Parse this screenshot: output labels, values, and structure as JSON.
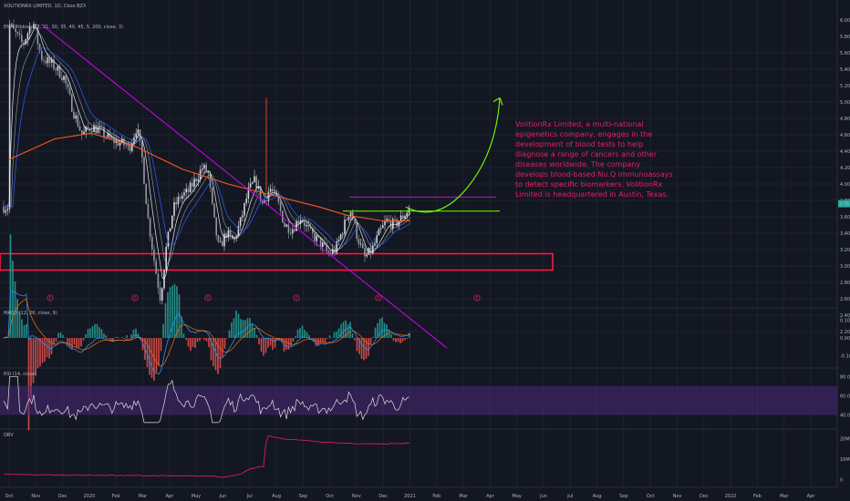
{
  "header": {
    "symbol_line": "VOLITIONRX LIMITED, 1D, Cboe BZX",
    "ema_label": "EMA Ribbon (12, 21, 30, 35, 40, 45, 5, 200, close, 3)",
    "macd_label": "MACD (12, 26, close, 9)",
    "rsi_label": "RSI (14, close)",
    "obv_label": "OBV"
  },
  "annotation": {
    "lines": [
      "VolitionRx Limited, a multi-national",
      "epigenetics company, engages in the",
      "development of blood tests to help",
      "diagnose a range of cancers and other",
      "diseases worldwide. The company",
      "develops blood-based Nu.Q immunoassays",
      "to detect specific biomarkers. VolitionRx",
      "Limited is headquartered in Austin, Texas."
    ],
    "event_marker": "E"
  },
  "colors": {
    "background": "#131722",
    "grid": "#1e222d",
    "candle_up": "#d1d4dc",
    "candle_down": "#9598a1",
    "ema_fast": "#ffffff",
    "ema_mid": "#2962ff",
    "ema_200": "#ff5722",
    "trendline": "#d500f9",
    "support_box": "#ff1744",
    "resistance": "#d500f9",
    "breakout": "#76ff03",
    "annotation_text": "#e91e63",
    "macd_line": "#2196f3",
    "signal_line": "#ff6d00",
    "rsi_line": "#e0e0e0",
    "rsi_band": "#4a2a7a",
    "obv_line": "#e91e63",
    "price_badge": "#26a69a"
  },
  "chart_data": [
    {
      "type": "line",
      "name": "price",
      "x_labels": [
        "Oct",
        "Nov",
        "Dec",
        "2020",
        "Feb",
        "Mar",
        "Apr",
        "May",
        "Jun",
        "Jul",
        "Aug",
        "Sep",
        "Oct",
        "Nov",
        "Dec",
        "2021",
        "Feb",
        "Mar",
        "Apr",
        "May",
        "Jun",
        "Jul",
        "Aug",
        "Sep",
        "Oct",
        "Nov",
        "Dec",
        "2022",
        "Feb",
        "Mar",
        "Apr"
      ],
      "y_ticks": [
        "5.60",
        "5.40",
        "5.20",
        "5.00",
        "4.80",
        "4.60",
        "4.40",
        "4.20",
        "4.00",
        "3.80",
        "3.60",
        "3.40",
        "3.20",
        "3.00",
        "2.80",
        "2.60",
        "2.40",
        "2.20"
      ],
      "y_ticks_top_partial": [
        "6.00",
        "5.80"
      ],
      "ylim": [
        2.2,
        6.0
      ],
      "last_price": "3.76",
      "resistance_level": 3.84,
      "breakout_level": 3.67,
      "support_zone": [
        2.95,
        3.15
      ],
      "projection_target": 5.05
    },
    {
      "type": "line",
      "name": "MACD",
      "y_ticks": [
        "0.10",
        "0.00",
        "-0.10"
      ],
      "ylim": [
        -0.15,
        0.15
      ]
    },
    {
      "type": "line",
      "name": "RSI",
      "y_ticks": [
        "80.00",
        "60.00",
        "40.00"
      ],
      "ylim": [
        30,
        85
      ],
      "band": [
        40,
        70
      ]
    },
    {
      "type": "line",
      "name": "OBV",
      "y_ticks": [
        "20M",
        "10M",
        "0"
      ],
      "ylim": [
        -3,
        23
      ]
    }
  ]
}
